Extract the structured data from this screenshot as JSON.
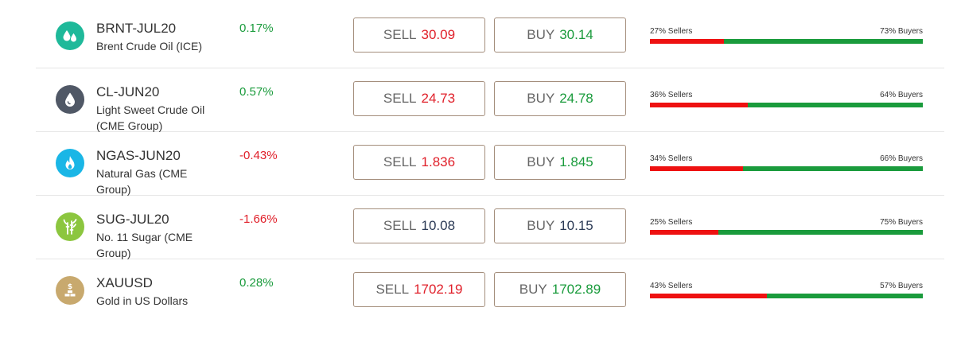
{
  "colors": {
    "up": "#1a9b3c",
    "down": "#e0202a",
    "sellers_bar": "#ee1111",
    "buyers_bar": "#1a9b3c",
    "button_border": "#a48e7c"
  },
  "instruments": [
    {
      "icon": "water-drops-icon",
      "icon_color": "#1fb99a",
      "symbol": "BRNT-JUL20",
      "name": "Brent Crude Oil (ICE)",
      "change": "0.17%",
      "direction": "up",
      "sell_label": "SELL",
      "sell_price": "30.09",
      "sell_color": "red",
      "buy_label": "BUY",
      "buy_price": "30.14",
      "buy_color": "green",
      "sellers_label": "27% Sellers",
      "buyers_label": "73% Buyers",
      "sellers_pct": 27
    },
    {
      "icon": "oil-drop-icon",
      "icon_color": "#505866",
      "symbol": "CL-JUN20",
      "name": "Light Sweet Crude Oil (CME Group)",
      "change": "0.57%",
      "direction": "up",
      "sell_label": "SELL",
      "sell_price": "24.73",
      "sell_color": "red",
      "buy_label": "BUY",
      "buy_price": "24.78",
      "buy_color": "green",
      "sellers_label": "36% Sellers",
      "buyers_label": "64% Buyers",
      "sellers_pct": 36
    },
    {
      "icon": "flame-icon",
      "icon_color": "#1ab6e6",
      "symbol": "NGAS-JUN20",
      "name": "Natural Gas (CME Group)",
      "change": "-0.43%",
      "direction": "down",
      "sell_label": "SELL",
      "sell_price": "1.836",
      "sell_color": "red",
      "buy_label": "BUY",
      "buy_price": "1.845",
      "buy_color": "green",
      "sellers_label": "34% Sellers",
      "buyers_label": "66% Buyers",
      "sellers_pct": 34
    },
    {
      "icon": "sugarcane-icon",
      "icon_color": "#8cc63f",
      "symbol": "SUG-JUL20",
      "name": "No. 11 Sugar (CME Group)",
      "change": "-1.66%",
      "direction": "down",
      "sell_label": "SELL",
      "sell_price": "10.08",
      "sell_color": "navy",
      "buy_label": "BUY",
      "buy_price": "10.15",
      "buy_color": "navy",
      "sellers_label": "25% Sellers",
      "buyers_label": "75% Buyers",
      "sellers_pct": 25
    },
    {
      "icon": "gold-bars-icon",
      "icon_color": "#c8a96e",
      "symbol": "XAUUSD",
      "name": "Gold in US Dollars",
      "change": "0.28%",
      "direction": "up",
      "sell_label": "SELL",
      "sell_price": "1702.19",
      "sell_color": "red",
      "buy_label": "BUY",
      "buy_price": "1702.89",
      "buy_color": "green",
      "sellers_label": "43% Sellers",
      "buyers_label": "57% Buyers",
      "sellers_pct": 43
    }
  ]
}
